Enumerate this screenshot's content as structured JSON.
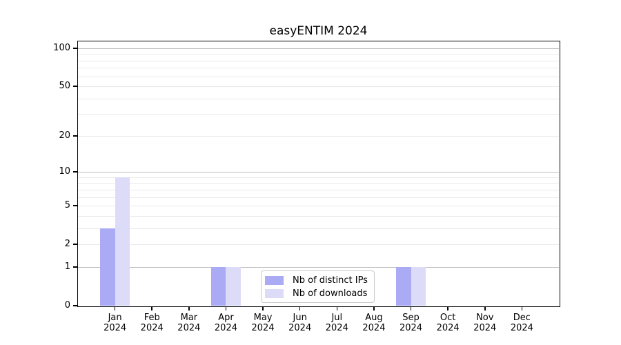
{
  "chart_data": {
    "type": "bar",
    "title": "easyENTIM 2024",
    "categories": [
      "Jan 2024",
      "Feb 2024",
      "Mar 2024",
      "Apr 2024",
      "May 2024",
      "Jun 2024",
      "Jul 2024",
      "Aug 2024",
      "Sep 2024",
      "Oct 2024",
      "Nov 2024",
      "Dec 2024"
    ],
    "series": [
      {
        "name": "Nb of distinct IPs",
        "color": "#aaaaf5",
        "values": [
          3,
          0,
          0,
          1,
          0,
          0,
          0,
          0,
          1,
          0,
          0,
          0
        ]
      },
      {
        "name": "Nb of downloads",
        "color": "#dcdcf8",
        "values": [
          9,
          0,
          0,
          1,
          0,
          0,
          0,
          0,
          1,
          0,
          0,
          0
        ]
      }
    ],
    "xlabel": "",
    "ylabel": "",
    "y_axis": {
      "scale": "log1p",
      "max": 100,
      "tick_labels": [
        0,
        1,
        2,
        5,
        10,
        20,
        50,
        100
      ],
      "major_gridlines": [
        1,
        10,
        100
      ],
      "minor_gridlines": [
        2,
        3,
        4,
        5,
        6,
        7,
        8,
        9,
        20,
        30,
        40,
        50,
        60,
        70,
        80,
        90
      ]
    },
    "legend": {
      "position": "bottom-center"
    },
    "grid": "on"
  },
  "styles": {
    "axis_color": "#000000",
    "grid_major_color": "#bdbdbd",
    "grid_minor_color": "#e9e9e9",
    "bar_distinct_ips_color": "#aaaaf5",
    "bar_downloads_color": "#dcdcf8",
    "background_color": "#ffffff"
  }
}
